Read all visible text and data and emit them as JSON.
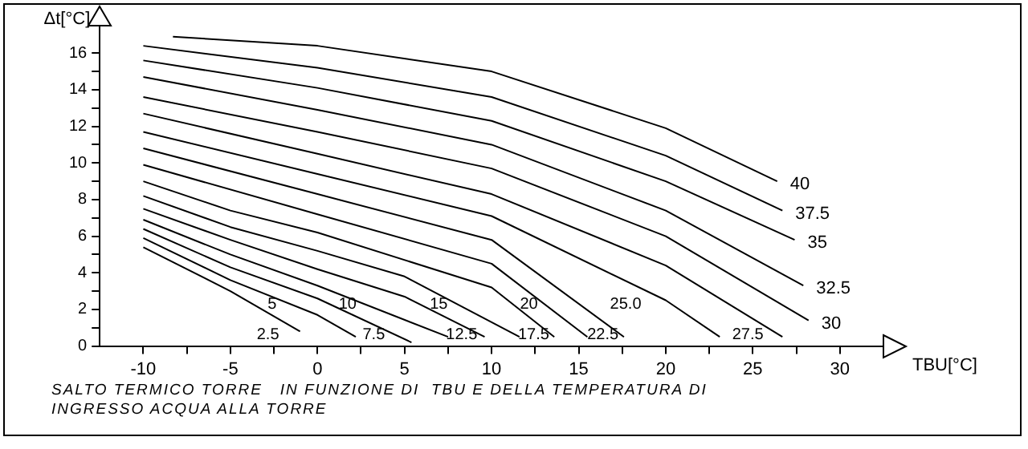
{
  "chart_data": {
    "type": "line",
    "xlabel": "TBU[°C]",
    "ylabel": "Δt[°C]",
    "xlim": [
      -12.5,
      32.5
    ],
    "ylim": [
      0,
      17.5
    ],
    "xticks": [
      -10,
      {
        "value": -7.5,
        "label": null
      },
      -5,
      {
        "value": -2.5,
        "label": null
      },
      0,
      {
        "value": 2.5,
        "label": null
      },
      5,
      {
        "value": 7.5,
        "label": null
      },
      10,
      {
        "value": 12.5,
        "label": null
      },
      15,
      {
        "value": 17.5,
        "label": null
      },
      20,
      {
        "value": 22.5,
        "label": null
      },
      25,
      {
        "value": 27.5,
        "label": null
      },
      30
    ],
    "yticks": [
      0,
      {
        "value": 1,
        "label": null
      },
      2,
      {
        "value": 3,
        "label": null
      },
      4,
      {
        "value": 5,
        "label": null
      },
      6,
      {
        "value": 7,
        "label": null
      },
      8,
      {
        "value": 9,
        "label": null
      },
      10,
      {
        "value": 11,
        "label": null
      },
      12,
      {
        "value": 13,
        "label": null
      },
      14,
      {
        "value": 15,
        "label": null
      },
      16
    ],
    "grid": false,
    "legend": false,
    "marker": "none",
    "line_style": "solid",
    "annotations": [
      "SALTO TERMICO TORRE   IN FUNZIONE DI  TBU E DELLA TEMPERATURA DI INGRESSO ACQUA ALLA TORRE"
    ],
    "series": [
      {
        "name": "40",
        "color": "#000000",
        "x": [
          -8.3,
          0,
          10,
          20,
          26.4
        ],
        "values": [
          16.9,
          16.4,
          15.0,
          11.9,
          9.0
        ]
      },
      {
        "name": "37.5",
        "color": "#000000",
        "x": [
          -10,
          0,
          10,
          20,
          26.7
        ],
        "values": [
          16.4,
          15.2,
          13.6,
          10.4,
          7.4
        ]
      },
      {
        "name": "35",
        "color": "#000000",
        "x": [
          -10,
          0,
          10,
          20,
          27.4
        ],
        "values": [
          15.6,
          14.1,
          12.3,
          9.0,
          5.8
        ]
      },
      {
        "name": "32.5",
        "color": "#000000",
        "x": [
          -10,
          0,
          10,
          20,
          27.9
        ],
        "values": [
          14.7,
          12.9,
          11.0,
          7.4,
          3.3
        ]
      },
      {
        "name": "30",
        "color": "#000000",
        "x": [
          -10,
          0,
          10,
          20,
          28.2
        ],
        "values": [
          13.6,
          11.7,
          9.7,
          6.0,
          1.4
        ]
      },
      {
        "name": "27.5",
        "color": "#000000",
        "x": [
          -10,
          0,
          10,
          20,
          26.7
        ],
        "values": [
          12.7,
          10.5,
          8.3,
          4.4,
          0.5
        ]
      },
      {
        "name": "25.0",
        "color": "#000000",
        "x": [
          -10,
          0,
          10,
          20,
          23.1
        ],
        "values": [
          11.7,
          9.4,
          7.1,
          2.5,
          0.5
        ]
      },
      {
        "name": "22.5",
        "color": "#000000",
        "x": [
          -10,
          0,
          10,
          17.6
        ],
        "values": [
          10.8,
          8.3,
          5.8,
          0.5
        ]
      },
      {
        "name": "20",
        "color": "#000000",
        "x": [
          -10,
          0,
          10,
          15.5
        ],
        "values": [
          9.9,
          7.2,
          4.5,
          0.5
        ]
      },
      {
        "name": "17.5",
        "color": "#000000",
        "x": [
          -10,
          -5,
          0,
          10,
          13.6
        ],
        "values": [
          9.0,
          7.4,
          6.2,
          3.2,
          0.5
        ]
      },
      {
        "name": "15",
        "color": "#000000",
        "x": [
          -10,
          -5,
          0,
          5,
          11.6
        ],
        "values": [
          8.2,
          6.5,
          5.2,
          3.8,
          0.5
        ]
      },
      {
        "name": "12.5",
        "color": "#000000",
        "x": [
          -10,
          -5,
          0,
          5,
          9.6
        ],
        "values": [
          7.5,
          5.8,
          4.2,
          2.7,
          0.5
        ]
      },
      {
        "name": "10",
        "color": "#000000",
        "x": [
          -10,
          -5,
          0,
          7.5
        ],
        "values": [
          6.9,
          5.0,
          3.3,
          0.5
        ]
      },
      {
        "name": "7.5",
        "color": "#000000",
        "x": [
          -10,
          -5,
          0,
          5.4
        ],
        "values": [
          6.4,
          4.3,
          2.6,
          0.2
        ]
      },
      {
        "name": "5",
        "color": "#000000",
        "x": [
          -10,
          -5,
          0,
          2.2
        ],
        "values": [
          5.9,
          3.6,
          1.7,
          0.5
        ]
      },
      {
        "name": "2.5",
        "color": "#000000",
        "x": [
          -10,
          -5,
          -1.0
        ],
        "values": [
          5.4,
          3.0,
          0.8
        ]
      }
    ]
  }
}
